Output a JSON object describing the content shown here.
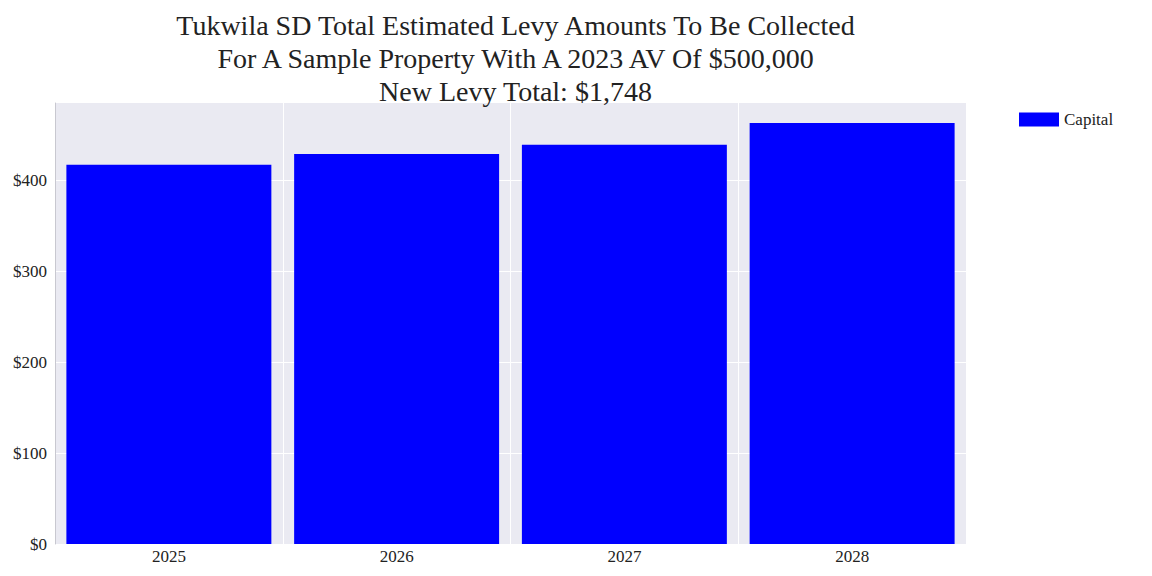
{
  "chart_data": {
    "type": "bar",
    "title": "Tukwila SD Total Estimated Levy Amounts To Be Collected\nFor A Sample Property With A 2023 AV Of $500,000\nNew Levy Total: $1,748",
    "categories": [
      "2025",
      "2026",
      "2027",
      "2028"
    ],
    "series": [
      {
        "name": "Capital",
        "color": "#0000ff",
        "values": [
          417,
          429,
          439,
          463
        ]
      }
    ],
    "ylim": [
      0,
      485
    ],
    "yticks": [
      {
        "value": 0,
        "label": "$0"
      },
      {
        "value": 100,
        "label": "$100"
      },
      {
        "value": 200,
        "label": "$200"
      },
      {
        "value": 300,
        "label": "$300"
      },
      {
        "value": 400,
        "label": "$400"
      }
    ],
    "grid": true,
    "legend": "upper right"
  }
}
